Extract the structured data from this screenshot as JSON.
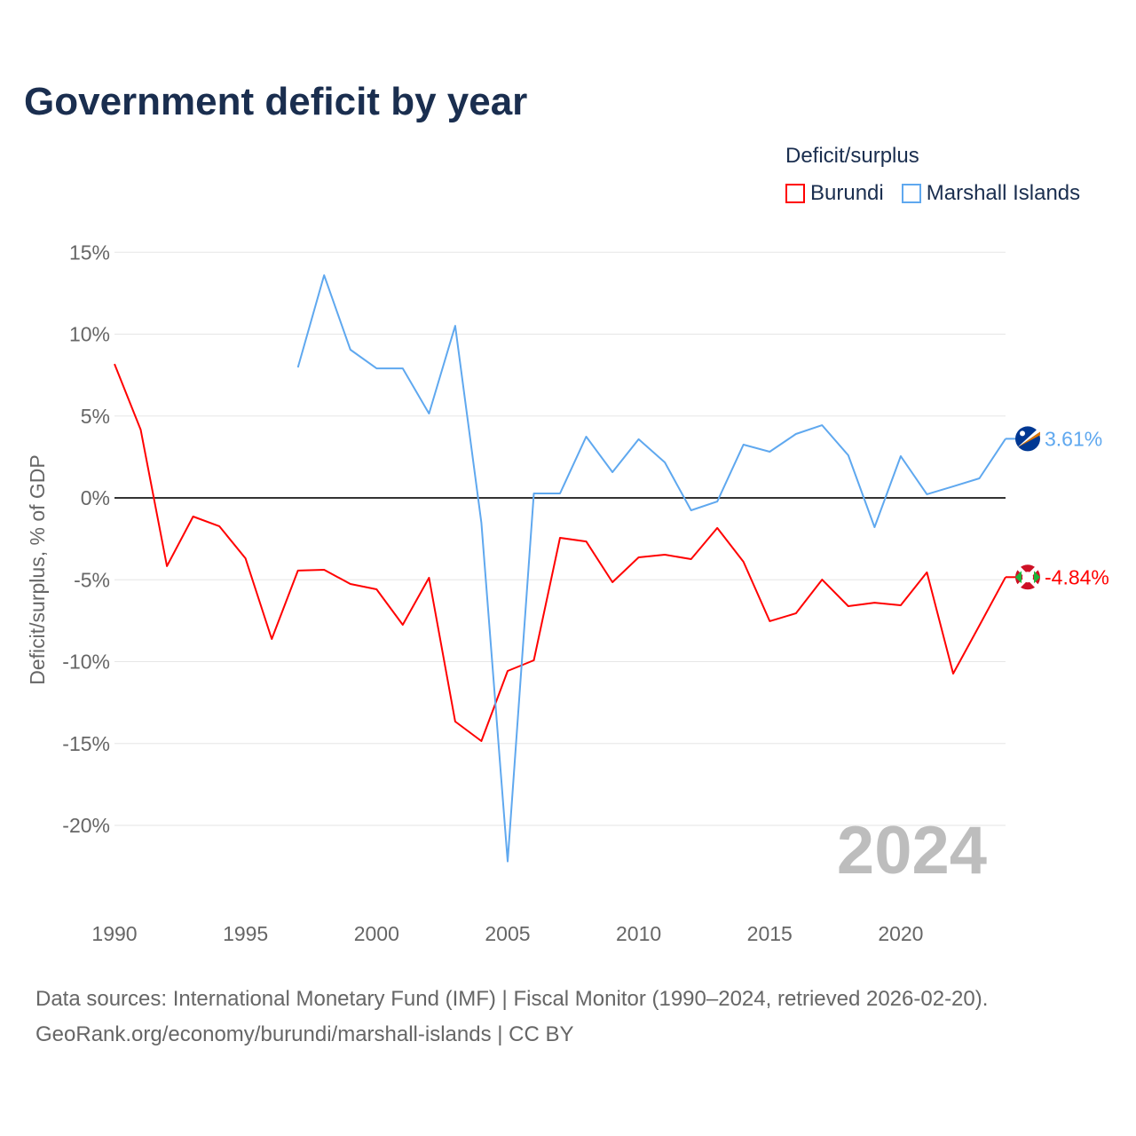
{
  "title": "Government deficit by year",
  "legend": {
    "title": "Deficit/surplus",
    "items": [
      {
        "label": "Burundi",
        "color": "#ff0000"
      },
      {
        "label": "Marshall Islands",
        "color": "#5fa8ef"
      }
    ]
  },
  "source": {
    "line1": "Data sources: International Monetary Fund (IMF) | Fiscal Monitor (1990–2024, retrieved 2026-02-20).",
    "line2": "GeoRank.org/economy/burundi/marshall-islands | CC BY"
  },
  "chart_data": {
    "type": "line",
    "title": "Government deficit by year",
    "xlabel": "",
    "ylabel": "Deficit/surplus, % of GDP",
    "xlim": [
      1990,
      2024
    ],
    "ylim": [
      -25,
      15
    ],
    "x_ticks": [
      "1990",
      "1995",
      "2000",
      "2005",
      "2010",
      "2015",
      "2020"
    ],
    "y_ticks": [
      {
        "v": 15,
        "label": "15%"
      },
      {
        "v": 10,
        "label": "10%"
      },
      {
        "v": 5,
        "label": "5%"
      },
      {
        "v": 0,
        "label": "0%"
      },
      {
        "v": -5,
        "label": "-5%"
      },
      {
        "v": -10,
        "label": "-10%"
      },
      {
        "v": -15,
        "label": "-15%"
      },
      {
        "v": -20,
        "label": "-20%"
      }
    ],
    "year_watermark": "2024",
    "series": [
      {
        "name": "Burundi",
        "color": "#ff0000",
        "end_label": "-4.84%",
        "flag": "burundi-flag",
        "x": [
          1990,
          1991,
          1992,
          1993,
          1994,
          1995,
          1996,
          1997,
          1998,
          1999,
          2000,
          2001,
          2002,
          2003,
          2004,
          2005,
          2006,
          2007,
          2008,
          2009,
          2010,
          2011,
          2012,
          2013,
          2014,
          2015,
          2016,
          2017,
          2018,
          2019,
          2020,
          2021,
          2022,
          2023,
          2024
        ],
        "values": [
          8.18,
          4.17,
          -4.17,
          -1.14,
          -1.73,
          -3.69,
          -8.62,
          -4.44,
          -4.39,
          -5.26,
          -5.58,
          -7.75,
          -4.88,
          -13.66,
          -14.85,
          -10.57,
          -9.92,
          -2.44,
          -2.66,
          -5.15,
          -3.63,
          -3.47,
          -3.74,
          -1.84,
          -3.9,
          -7.53,
          -7.05,
          -4.99,
          -6.61,
          -6.4,
          -6.56,
          -4.55,
          -10.73,
          -7.8,
          -4.84
        ]
      },
      {
        "name": "Marshall Islands",
        "color": "#5fa8ef",
        "end_label": "3.61%",
        "flag": "marshall-islands-flag",
        "x": [
          1997,
          1998,
          1999,
          2000,
          2001,
          2002,
          2003,
          2004,
          2005,
          2006,
          2007,
          2008,
          2009,
          2010,
          2011,
          2012,
          2013,
          2014,
          2015,
          2016,
          2017,
          2018,
          2019,
          2020,
          2021,
          2022,
          2023,
          2024
        ],
        "values": [
          7.97,
          13.6,
          9.05,
          7.91,
          7.91,
          5.15,
          10.51,
          -1.52,
          -22.2,
          0.27,
          0.27,
          3.74,
          1.57,
          3.58,
          2.17,
          -0.76,
          -0.22,
          3.25,
          2.82,
          3.9,
          4.44,
          2.6,
          -1.79,
          2.55,
          0.22,
          0.7,
          1.19,
          3.61
        ]
      }
    ]
  }
}
